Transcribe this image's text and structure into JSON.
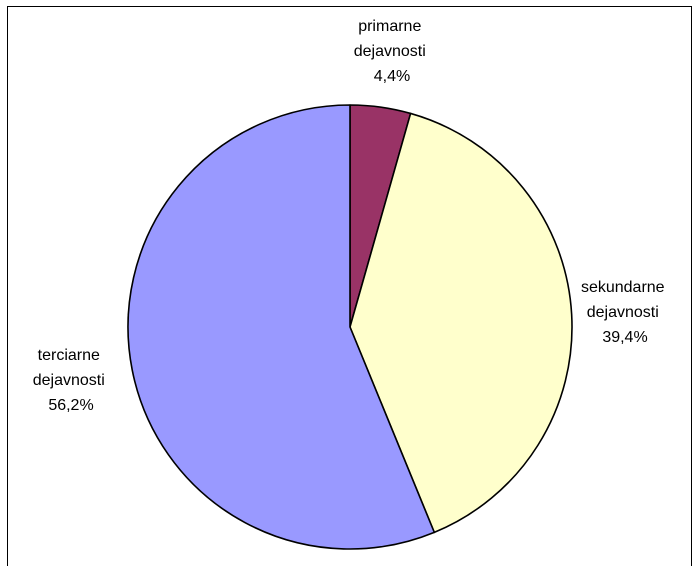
{
  "chart_data": {
    "type": "pie",
    "title": "",
    "slices": [
      {
        "label_line1": "primarne",
        "label_line2": "dejavnosti",
        "value_label": "4,4%",
        "value": 4.4,
        "color": "#993366"
      },
      {
        "label_line1": "sekundarne",
        "label_line2": "dejavnosti",
        "value_label": "39,4%",
        "value": 39.4,
        "color": "#FFFFCC"
      },
      {
        "label_line1": "terciarne",
        "label_line2": "dejavnosti",
        "value_label": "56,2%",
        "value": 56.2,
        "color": "#9999FF"
      }
    ],
    "start_angle": "12 o'clock",
    "direction": "clockwise",
    "legend": "none",
    "data_labels": "outside"
  }
}
